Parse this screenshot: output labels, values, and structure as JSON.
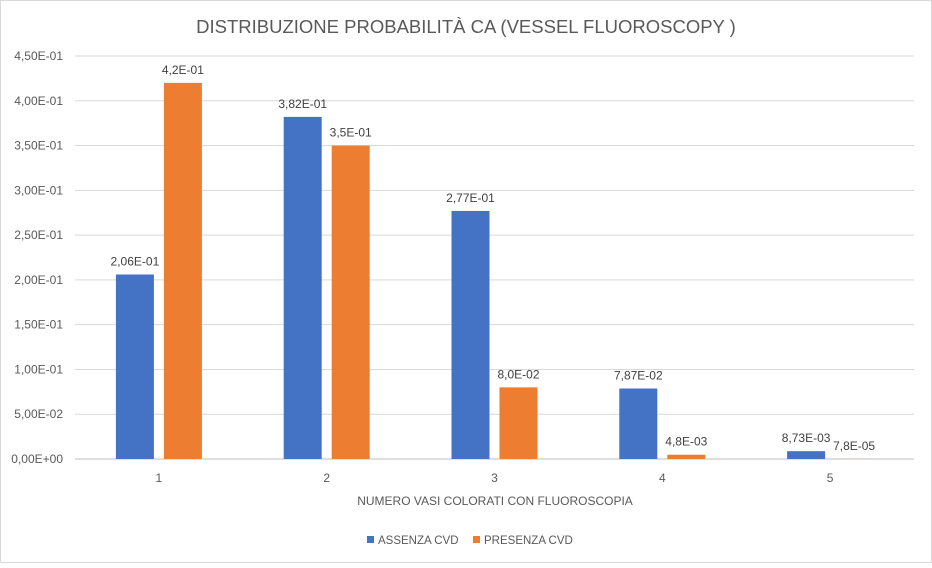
{
  "chart_data": {
    "type": "bar",
    "title": "DISTRIBUZIONE PROBABILITÀ CA (VESSEL FLUOROSCOPY )",
    "xlabel": "NUMERO VASI COLORATI CON FLUOROSCOPIA",
    "ylabel": "",
    "categories": [
      "1",
      "2",
      "3",
      "4",
      "5"
    ],
    "ylim": [
      0,
      0.45
    ],
    "yticks": [
      0,
      0.05,
      0.1,
      0.15,
      0.2,
      0.25,
      0.3,
      0.35,
      0.4,
      0.45
    ],
    "ytick_labels": [
      "0,00E+00",
      "5,00E-02",
      "1,00E-01",
      "1,50E-01",
      "2,00E-01",
      "2,50E-01",
      "3,00E-01",
      "3,50E-01",
      "4,00E-01",
      "4,50E-01"
    ],
    "grid": true,
    "legend_position": "bottom",
    "series": [
      {
        "name": "ASSENZA CVD",
        "color": "#4472C4",
        "values": [
          0.206,
          0.382,
          0.277,
          0.0787,
          0.00873
        ],
        "labels": [
          "2,06E-01",
          "3,82E-01",
          "2,77E-01",
          "7,87E-02",
          "8,73E-03"
        ]
      },
      {
        "name": "PRESENZA CVD",
        "color": "#ED7D31",
        "values": [
          0.42,
          0.35,
          0.08,
          0.0048,
          7.8e-05
        ],
        "labels": [
          "4,2E-01",
          "3,5E-01",
          "8,0E-02",
          "4,8E-03",
          "7,8E-05"
        ]
      }
    ]
  }
}
